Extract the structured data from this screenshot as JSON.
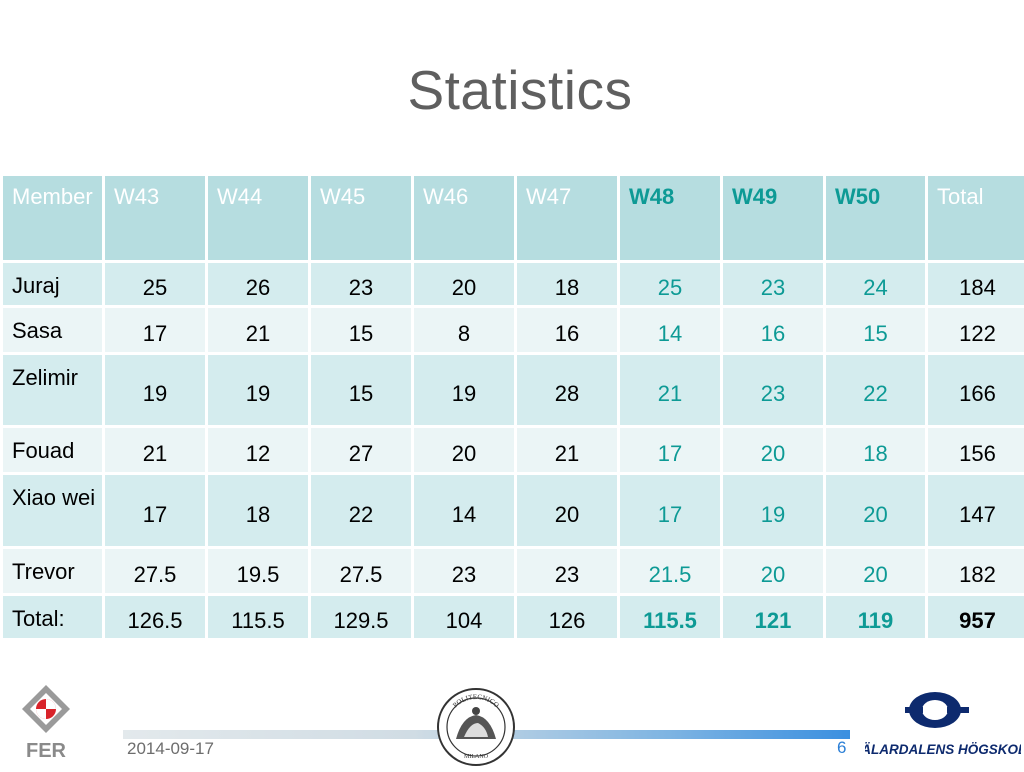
{
  "slide": {
    "title": "Statistics",
    "date": "2014-09-17",
    "page_number": "6"
  },
  "table": {
    "headers": [
      {
        "label": "Member",
        "highlight": false
      },
      {
        "label": "W43",
        "highlight": false
      },
      {
        "label": "W44",
        "highlight": false
      },
      {
        "label": "W45",
        "highlight": false
      },
      {
        "label": "W46",
        "highlight": false
      },
      {
        "label": "W47",
        "highlight": false
      },
      {
        "label": "W48",
        "highlight": true
      },
      {
        "label": "W49",
        "highlight": true
      },
      {
        "label": "W50",
        "highlight": true
      },
      {
        "label": "Total",
        "highlight": false
      }
    ],
    "rows": [
      {
        "member": "Juraj",
        "values": [
          "25",
          "26",
          "23",
          "20",
          "18",
          "25",
          "23",
          "24",
          "184"
        ]
      },
      {
        "member": "Sasa",
        "values": [
          "17",
          "21",
          "15",
          "8",
          "16",
          "14",
          "16",
          "15",
          "122"
        ]
      },
      {
        "member": "Zelimir",
        "values": [
          "19",
          "19",
          "15",
          "19",
          "28",
          "21",
          "23",
          "22",
          "166"
        ]
      },
      {
        "member": "Fouad",
        "values": [
          "21",
          "12",
          "27",
          "20",
          "21",
          "17",
          "20",
          "18",
          "156"
        ]
      },
      {
        "member": "Xiao wei",
        "values": [
          "17",
          "18",
          "22",
          "14",
          "20",
          "17",
          "19",
          "20",
          "147"
        ]
      },
      {
        "member": "Trevor",
        "values": [
          "27.5",
          "19.5",
          "27.5",
          "23",
          "23",
          "21.5",
          "20",
          "20",
          "182"
        ]
      },
      {
        "member": "Total:",
        "values": [
          "126.5",
          "115.5",
          "129.5",
          "104",
          "126",
          "115.5",
          "121",
          "119",
          "957"
        ]
      }
    ]
  },
  "logos": {
    "left": "FER",
    "center": "POLITECNICO MILANO",
    "right": "MÄLARDALENS HÖGSKOLA"
  },
  "colors": {
    "header_bg": "#b6dde0",
    "row_odd_bg": "#d4ecee",
    "row_even_bg": "#ebf5f6",
    "accent_teal": "#0d9a95",
    "title_gray": "#5f5f5f"
  }
}
